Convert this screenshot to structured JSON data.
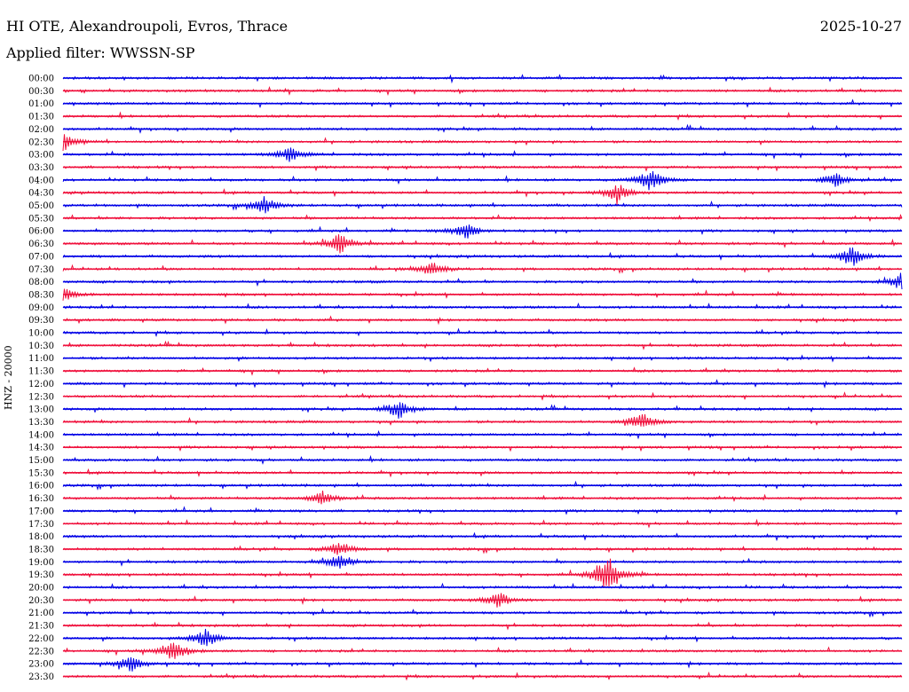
{
  "header": {
    "station": "HI OTE, Alexandroupoli, Evros, Thrace",
    "date": "2025-10-27",
    "filter": "Applied filter: WWSSN-SP"
  },
  "chart_data": {
    "type": "line",
    "title": "HI OTE, Alexandroupoli, Evros, Thrace",
    "ylabel": "HNZ - 20000",
    "row_labels": [
      "00:00",
      "00:30",
      "01:00",
      "01:30",
      "02:00",
      "02:30",
      "03:00",
      "03:30",
      "04:00",
      "04:30",
      "05:00",
      "05:30",
      "06:00",
      "06:30",
      "07:00",
      "07:30",
      "08:00",
      "08:30",
      "09:00",
      "09:30",
      "10:00",
      "10:30",
      "11:00",
      "11:30",
      "12:00",
      "12:30",
      "13:00",
      "13:30",
      "14:00",
      "14:30",
      "15:00",
      "15:30",
      "16:00",
      "16:30",
      "17:00",
      "17:30",
      "18:00",
      "18:30",
      "19:00",
      "19:30",
      "20:00",
      "20:30",
      "21:00",
      "21:30",
      "22:00",
      "22:30",
      "23:00",
      "23:30"
    ],
    "colors": [
      "#0000e6",
      "#f0103c"
    ],
    "notable_events": [
      {
        "row": "19:30",
        "position": 0.65,
        "amplitude": 1.0
      },
      {
        "row": "04:30",
        "position": 0.66,
        "amplitude": 0.45
      },
      {
        "row": "06:30",
        "position": 0.33,
        "amplitude": 0.5
      },
      {
        "row": "13:00",
        "position": 0.4,
        "amplitude": 0.45
      },
      {
        "row": "13:30",
        "position": 0.69,
        "amplitude": 0.45
      },
      {
        "row": "22:30",
        "position": 0.13,
        "amplitude": 0.55
      },
      {
        "row": "22:00",
        "position": 0.17,
        "amplitude": 0.45
      },
      {
        "row": "07:00",
        "position": 0.94,
        "amplitude": 0.5
      },
      {
        "row": "06:00",
        "position": 0.48,
        "amplitude": 0.45
      },
      {
        "row": "04:00",
        "position": 0.7,
        "amplitude": 0.55
      },
      {
        "row": "04:00",
        "position": 0.92,
        "amplitude": 0.4
      },
      {
        "row": "03:00",
        "position": 0.27,
        "amplitude": 0.35
      },
      {
        "row": "08:30",
        "position": 0.0,
        "amplitude": 0.35
      },
      {
        "row": "02:30",
        "position": 0.0,
        "amplitude": 0.45
      },
      {
        "row": "20:30",
        "position": 0.52,
        "amplitude": 0.4
      },
      {
        "row": "16:30",
        "position": 0.31,
        "amplitude": 0.35
      },
      {
        "row": "18:30",
        "position": 0.33,
        "amplitude": 0.35
      },
      {
        "row": "19:00",
        "position": 0.33,
        "amplitude": 0.4
      },
      {
        "row": "23:00",
        "position": 0.08,
        "amplitude": 0.4
      },
      {
        "row": "05:00",
        "position": 0.24,
        "amplitude": 0.4
      },
      {
        "row": "07:30",
        "position": 0.44,
        "amplitude": 0.35
      },
      {
        "row": "08:00",
        "position": 1.0,
        "amplitude": 0.4
      }
    ]
  }
}
